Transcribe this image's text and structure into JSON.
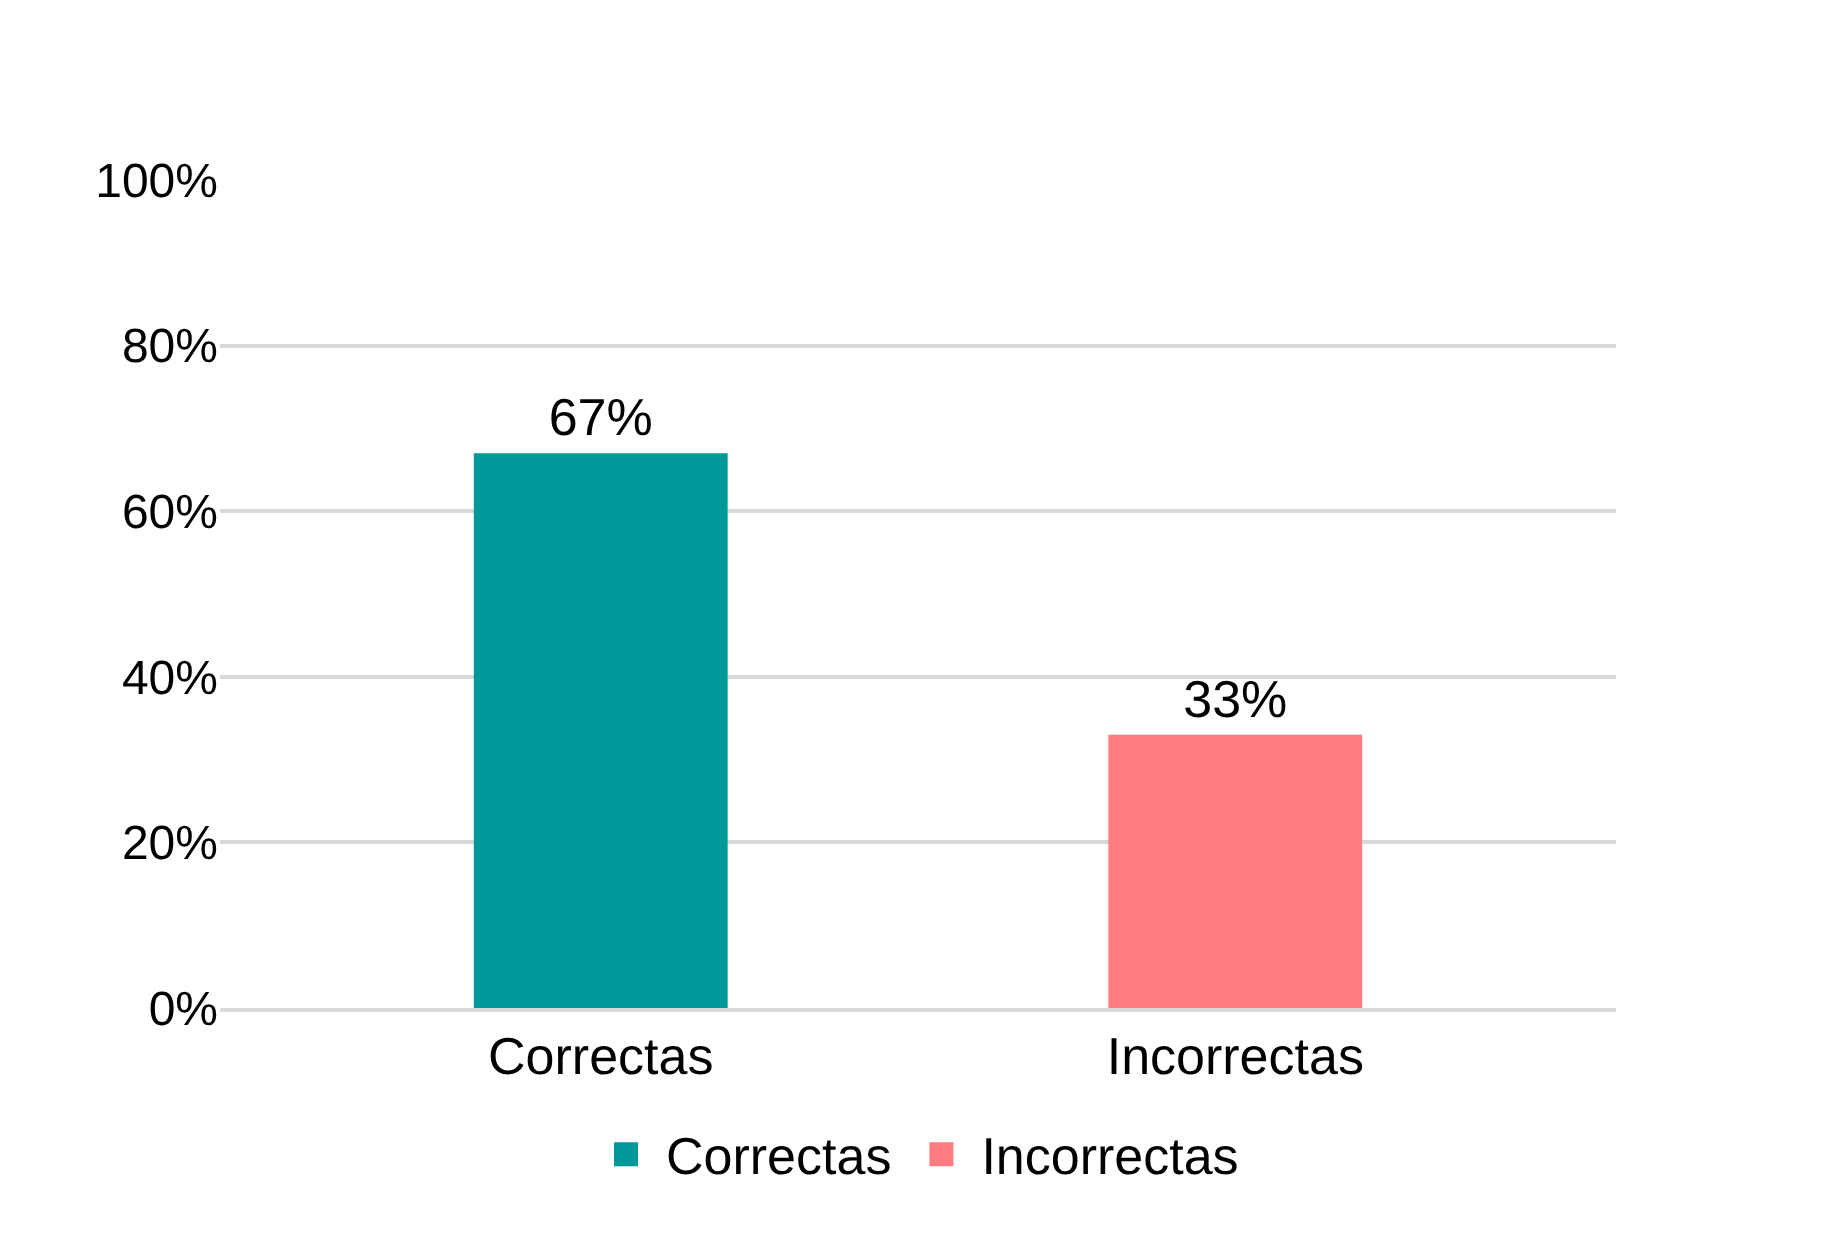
{
  "chart_data": {
    "type": "bar",
    "categories": [
      "Correctas",
      "Incorrectas"
    ],
    "series": [
      {
        "name": "Correctas",
        "color": "#009999",
        "values": [
          67,
          null
        ],
        "value_labels": [
          "67%",
          null
        ]
      },
      {
        "name": "Incorrectas",
        "color": "#ff7c80",
        "values": [
          null,
          33
        ],
        "value_labels": [
          null,
          "33%"
        ]
      }
    ],
    "ylim": [
      0,
      100
    ],
    "yticks": [
      {
        "value": 0,
        "label": "0%"
      },
      {
        "value": 20,
        "label": "20%"
      },
      {
        "value": 40,
        "label": "40%"
      },
      {
        "value": 60,
        "label": "60%"
      },
      {
        "value": 80,
        "label": "80%"
      },
      {
        "value": 100,
        "label": "100%"
      }
    ],
    "grid": "y",
    "legend": "bottom"
  }
}
